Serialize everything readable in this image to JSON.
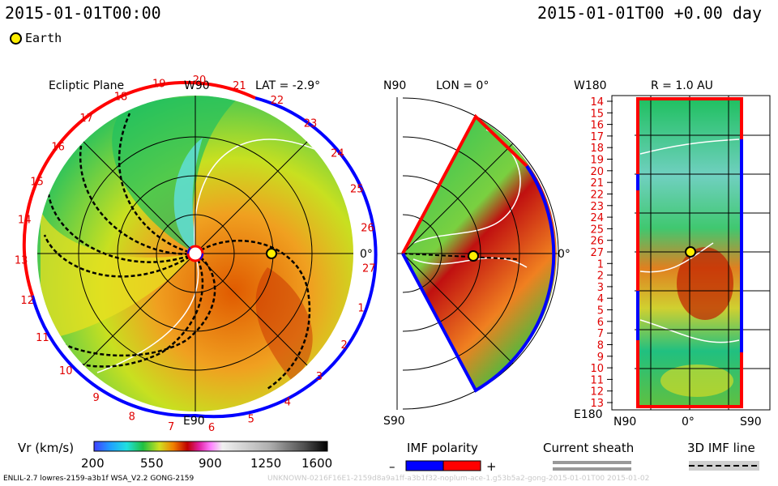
{
  "header": {
    "timestamp_left": "2015-01-01T00:00",
    "timestamp_right": "2015-01-01T00 +0.00 day"
  },
  "legend": {
    "earth": "Earth"
  },
  "ecliptic_panel": {
    "title": "Ecliptic Plane",
    "lat_label": "LAT = -2.9°",
    "top_label": "W90",
    "bottom_label": "E90",
    "right_label": "0°",
    "carrington_labels": [
      "19",
      "20",
      "21",
      "22",
      "23",
      "24",
      "25",
      "26",
      "27",
      "1",
      "2",
      "3",
      "4",
      "5",
      "6",
      "7",
      "8",
      "9",
      "10",
      "11",
      "12",
      "13",
      "14",
      "15",
      "16",
      "17",
      "18"
    ]
  },
  "meridional_panel": {
    "title": "LON = 0°",
    "top_label": "N90",
    "bottom_label": "S90",
    "right_label": "0°"
  },
  "radial_panel": {
    "title": "R = 1.0 AU",
    "top_left_label": "W180",
    "bottom_left_label": "E180",
    "x_labels": [
      "N90",
      "0°",
      "S90"
    ],
    "y_labels": [
      "14",
      "15",
      "16",
      "17",
      "18",
      "19",
      "20",
      "21",
      "22",
      "23",
      "24",
      "25",
      "26",
      "27",
      "1",
      "2",
      "3",
      "4",
      "5",
      "6",
      "7",
      "8",
      "9",
      "10",
      "11",
      "12",
      "13"
    ]
  },
  "colorbar": {
    "label": "Vr (km/s)",
    "ticks": [
      "200",
      "550",
      "900",
      "1250",
      "1600"
    ]
  },
  "imf_polarity": {
    "label": "IMF polarity",
    "minus": "–",
    "plus": "+",
    "neg_color": "#0000ff",
    "pos_color": "#ff0000"
  },
  "current_sheath": {
    "label": "Current sheath"
  },
  "imf_line": {
    "label": "3D IMF line"
  },
  "footer": {
    "left": "ENLIL-2.7 lowres-2159-a3b1f WSA_V2.2 GONG-2159",
    "right": "UNKNOWN-0216F16E1-2159d8a9a1ff-a3b1f32-noplum-ace-1.g53b5a2-gong-2015-01-01T00   2015-01-02"
  }
}
